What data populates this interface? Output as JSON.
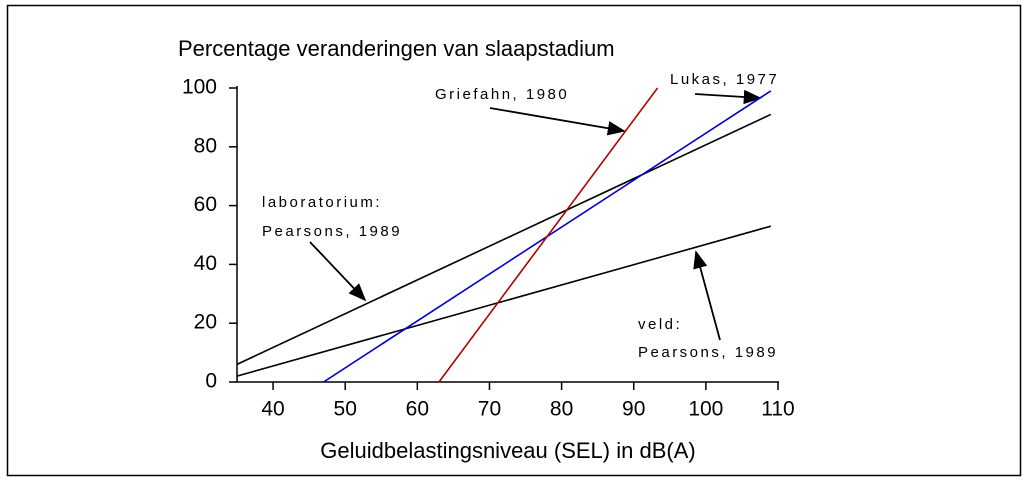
{
  "chart_data": {
    "type": "line",
    "title": "Percentage veranderingen van slaapstadium",
    "x_label": "Geluidbelastingsniveau (SEL) in dB(A)",
    "xlim": [
      35,
      110
    ],
    "xticks": [
      40,
      50,
      60,
      70,
      80,
      90,
      100,
      110
    ],
    "ylim": [
      0,
      100
    ],
    "yticks": [
      0,
      20,
      40,
      60,
      80,
      100
    ],
    "series": [
      {
        "color": "#000000",
        "x": [
          35,
          109
        ],
        "values": [
          6,
          91
        ]
      },
      {
        "color": "#000000",
        "x": [
          35,
          109
        ],
        "values": [
          2,
          53
        ]
      },
      {
        "color": "#0000cc",
        "x": [
          47,
          109
        ],
        "values": [
          0,
          99
        ]
      },
      {
        "color": "#b00000",
        "x": [
          63,
          93.3
        ],
        "values": [
          0,
          100
        ]
      }
    ],
    "annotations": [
      "Griefahn, 1980",
      "Lukas, 1977",
      "laboratorium:",
      "Pearsons, 1989",
      "veld:",
      "Pearsons, 1989"
    ]
  }
}
